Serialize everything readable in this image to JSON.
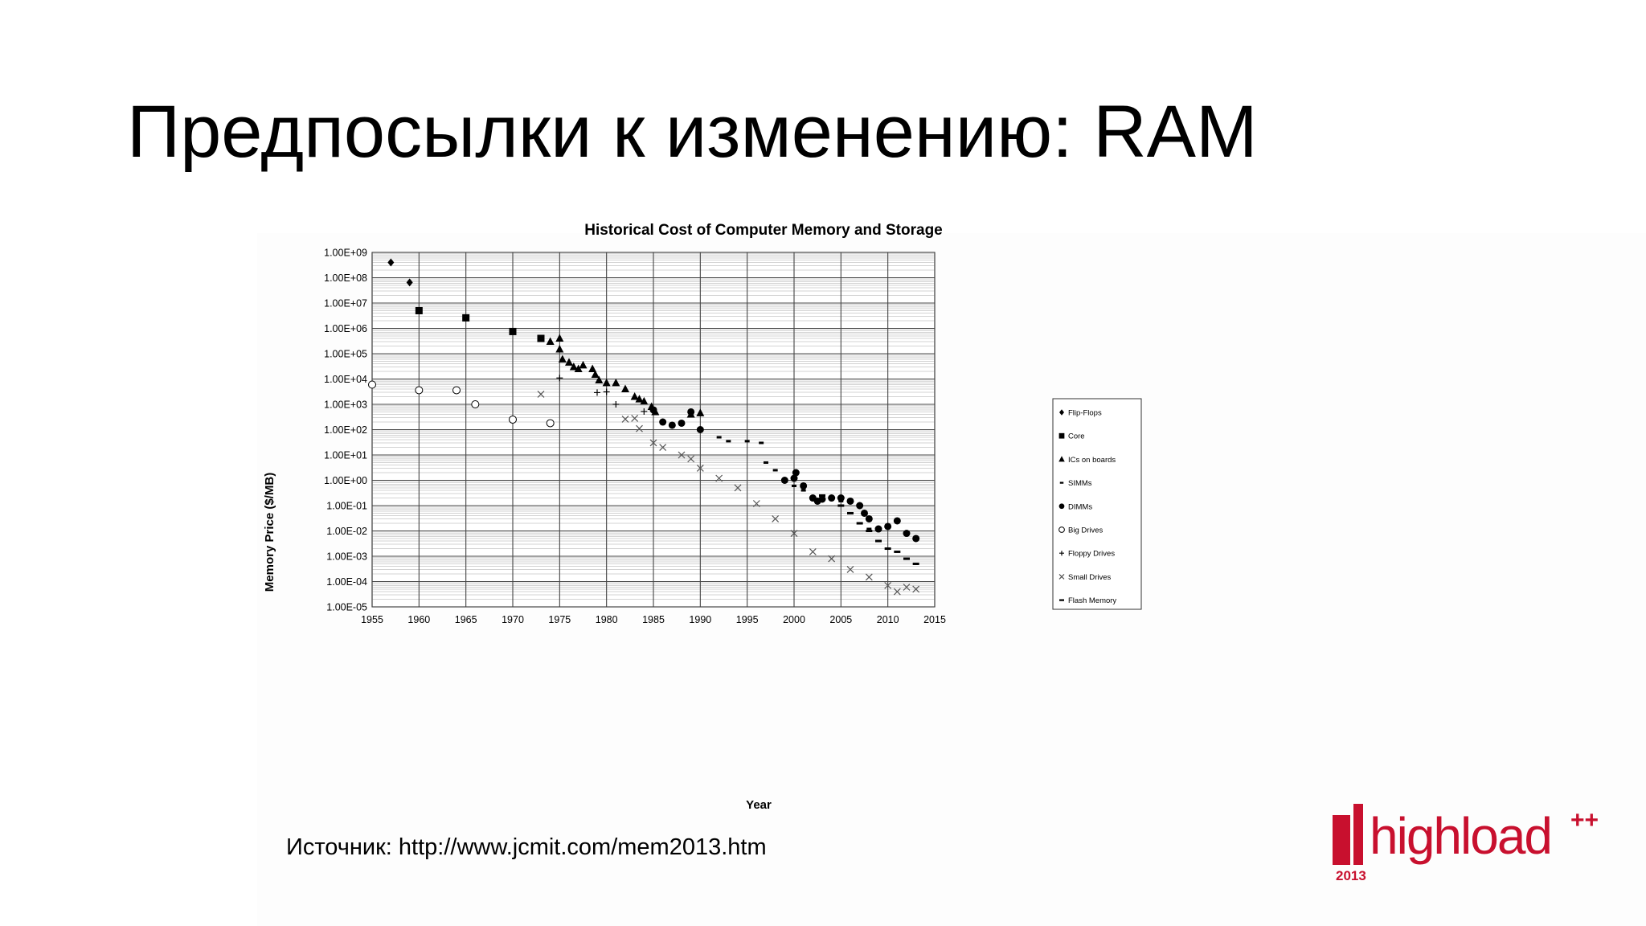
{
  "slide": {
    "title": "Предпосылки к изменению: RAM",
    "source": "Источник: http://www.jcmit.com/mem2013.htm"
  },
  "logo": {
    "word": "highload",
    "superscript": "++",
    "year": "2013",
    "accent": "#c8102e"
  },
  "chart_data": {
    "type": "scatter",
    "title": "Historical Cost of Computer Memory and Storage",
    "xlabel": "Year",
    "ylabel": "Memory Price ($/MB)",
    "xlim": [
      1955,
      2015
    ],
    "x_ticks": [
      "1955",
      "1960",
      "1965",
      "1970",
      "1975",
      "1980",
      "1985",
      "1990",
      "1995",
      "2000",
      "2005",
      "2010",
      "2015"
    ],
    "y_log": true,
    "y_exponent_range": [
      -5,
      9
    ],
    "y_ticks": [
      "1.00E+09",
      "1.00E+08",
      "1.00E+07",
      "1.00E+06",
      "1.00E+05",
      "1.00E+04",
      "1.00E+03",
      "1.00E+02",
      "1.00E+01",
      "1.00E+00",
      "1.00E-01",
      "1.00E-02",
      "1.00E-03",
      "1.00E-04",
      "1.00E-05"
    ],
    "grid": true,
    "legend_position": "right",
    "series": [
      {
        "name": "Flip-Flops",
        "marker": "diamond",
        "points": [
          [
            1957,
            400000000
          ],
          [
            1959,
            65000000
          ]
        ]
      },
      {
        "name": "Core",
        "marker": "square",
        "points": [
          [
            1960,
            5000000
          ],
          [
            1965,
            2600000
          ],
          [
            1970,
            750000
          ],
          [
            1973,
            400000
          ]
        ]
      },
      {
        "name": "ICs on boards",
        "marker": "triangle",
        "points": [
          [
            1974,
            300000
          ],
          [
            1975,
            400000
          ],
          [
            1975,
            150000
          ],
          [
            1975.3,
            60000
          ],
          [
            1976,
            45000
          ],
          [
            1976.5,
            30000
          ],
          [
            1977,
            25000
          ],
          [
            1977.5,
            35000
          ],
          [
            1978.5,
            25000
          ],
          [
            1978.8,
            15000
          ],
          [
            1979.2,
            9000
          ],
          [
            1980,
            7000
          ],
          [
            1981,
            7000
          ],
          [
            1982,
            4000
          ],
          [
            1983,
            2000
          ],
          [
            1983.5,
            1600
          ],
          [
            1984,
            1300
          ],
          [
            1984.8,
            800
          ],
          [
            1985.2,
            500
          ],
          [
            1989,
            400
          ],
          [
            1990,
            450
          ]
        ]
      },
      {
        "name": "SIMMs",
        "marker": "dash",
        "points": [
          [
            1986,
            200
          ],
          [
            1988,
            160
          ],
          [
            1990,
            110
          ],
          [
            1992,
            50
          ],
          [
            1993,
            35
          ],
          [
            1995,
            35
          ],
          [
            1996.5,
            30
          ],
          [
            1997,
            5
          ],
          [
            1998,
            2.5
          ],
          [
            1999,
            1
          ],
          [
            2000,
            0.6
          ],
          [
            2001,
            0.4
          ],
          [
            2003,
            0.2
          ],
          [
            2005,
            0.15
          ],
          [
            2006,
            0.05
          ],
          [
            2007,
            0.02
          ],
          [
            2008,
            0.012
          ]
        ]
      },
      {
        "name": "DIMMs",
        "marker": "circle-filled",
        "points": [
          [
            1985,
            600
          ],
          [
            1986,
            200
          ],
          [
            1987,
            150
          ],
          [
            1988,
            180
          ],
          [
            1989,
            500
          ],
          [
            1990,
            100
          ],
          [
            1999,
            1
          ],
          [
            2000,
            1.2
          ],
          [
            2000.2,
            2
          ],
          [
            2001,
            0.6
          ],
          [
            2002,
            0.2
          ],
          [
            2002.5,
            0.15
          ],
          [
            2003,
            0.18
          ],
          [
            2004,
            0.2
          ],
          [
            2005,
            0.2
          ],
          [
            2006,
            0.15
          ],
          [
            2007,
            0.1
          ],
          [
            2007.5,
            0.05
          ],
          [
            2008,
            0.03
          ],
          [
            2009,
            0.012
          ],
          [
            2010,
            0.015
          ],
          [
            2011,
            0.025
          ],
          [
            2012,
            0.008
          ],
          [
            2013,
            0.005
          ]
        ]
      },
      {
        "name": "Big Drives",
        "marker": "circle-open",
        "points": [
          [
            1955,
            6000
          ],
          [
            1960,
            3600
          ],
          [
            1964,
            3600
          ],
          [
            1966,
            1000
          ],
          [
            1970,
            250
          ],
          [
            1974,
            180
          ]
        ]
      },
      {
        "name": "Floppy Drives",
        "marker": "plus",
        "points": [
          [
            1975,
            11000
          ],
          [
            1979,
            2900
          ],
          [
            1980,
            3100
          ],
          [
            1981,
            1000
          ],
          [
            1984,
            520
          ]
        ]
      },
      {
        "name": "Small Drives",
        "marker": "x",
        "points": [
          [
            1973,
            2500
          ],
          [
            1982,
            260
          ],
          [
            1983,
            280
          ],
          [
            1983.5,
            110
          ],
          [
            1985,
            30
          ],
          [
            1986,
            20
          ],
          [
            1988,
            10
          ],
          [
            1989,
            7
          ],
          [
            1990,
            3
          ],
          [
            1992,
            1.2
          ],
          [
            1994,
            0.5
          ],
          [
            1996,
            0.12
          ],
          [
            1998,
            0.03
          ],
          [
            2000,
            0.008
          ],
          [
            2002,
            0.0015
          ],
          [
            2004,
            0.0008
          ],
          [
            2006,
            0.0003
          ],
          [
            2008,
            0.00015
          ],
          [
            2010,
            7e-05
          ],
          [
            2011,
            4e-05
          ],
          [
            2012,
            6e-05
          ],
          [
            2013,
            5e-05
          ]
        ]
      },
      {
        "name": "Flash Memory",
        "marker": "bar",
        "points": [
          [
            2003,
            0.25
          ],
          [
            2005,
            0.1
          ],
          [
            2006,
            0.05
          ],
          [
            2007,
            0.02
          ],
          [
            2008,
            0.01
          ],
          [
            2009,
            0.004
          ],
          [
            2010,
            0.002
          ],
          [
            2011,
            0.0015
          ],
          [
            2012,
            0.0008
          ],
          [
            2013,
            0.0005
          ]
        ]
      }
    ]
  }
}
